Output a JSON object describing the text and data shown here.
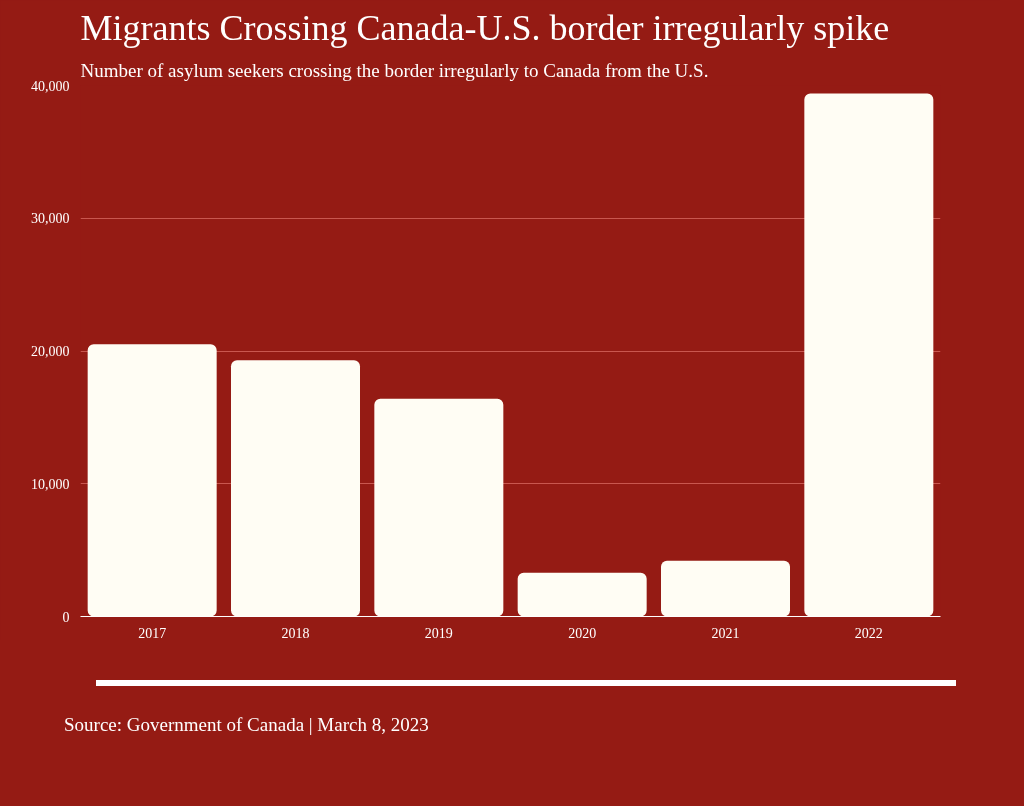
{
  "chart_data": {
    "type": "bar",
    "title": "Migrants Crossing Canada-U.S. border irregularly spike",
    "subtitle": "Number of asylum seekers crossing the border irregularly to Canada from the U.S.",
    "categories": [
      "2017",
      "2018",
      "2019",
      "2020",
      "2021",
      "2022"
    ],
    "values": [
      20500,
      19300,
      16400,
      3300,
      4200,
      39400
    ],
    "color": "#fffdf4",
    "ylim": [
      0,
      40000
    ],
    "yticks": [
      0,
      {
        "value": 10000,
        "label": "10,000"
      },
      {
        "value": 20000,
        "label": "20,000"
      },
      {
        "value": 30000,
        "label": "30,000"
      },
      {
        "value": 40000,
        "label": "40,000"
      }
    ],
    "grid": "y",
    "annotations": [
      "Source: Government of Canada | March 8, 2023"
    ]
  }
}
